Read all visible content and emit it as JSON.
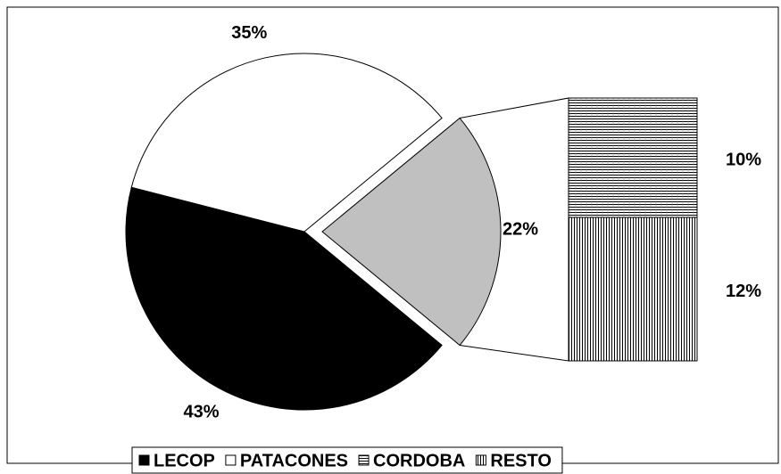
{
  "chart_data": {
    "type": "bar-of-pie",
    "series": [
      {
        "name": "LECOP",
        "color": "#000000",
        "value": 43,
        "value_label": "43%",
        "part": "pie"
      },
      {
        "name": "PATACONES",
        "color": "#ffffff",
        "value": 35,
        "value_label": "35%",
        "part": "pie"
      },
      {
        "name": "CORDOBA",
        "color": "#ffffff",
        "pattern": "horizontal",
        "value": 10,
        "value_label": "10%",
        "part": "bar"
      },
      {
        "name": "RESTO",
        "color": "#ffffff",
        "pattern": "vertical",
        "value": 12,
        "value_label": "12%",
        "part": "bar"
      }
    ],
    "split_value": 22,
    "split_value_label": "22%",
    "split_color": "#c0c0c0",
    "legend": "bottom"
  }
}
